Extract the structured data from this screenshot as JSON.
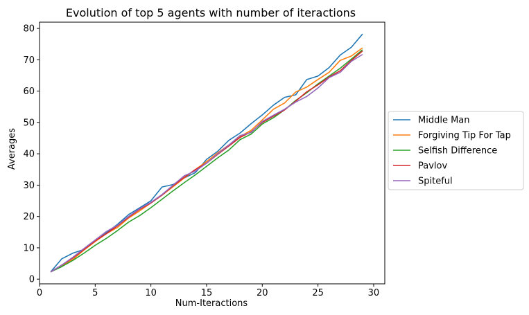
{
  "chart_data": {
    "type": "line",
    "title": "Evolution of top 5 agents with number of iteractions",
    "xlabel": "Num-Iteractions",
    "ylabel": "Averages",
    "xlim": [
      0,
      31
    ],
    "ylim": [
      -1.5,
      82
    ],
    "xticks": [
      0,
      5,
      10,
      15,
      20,
      25,
      30
    ],
    "yticks": [
      0,
      10,
      20,
      30,
      40,
      50,
      60,
      70,
      80
    ],
    "grid": false,
    "legend_position": "center-right, outside plot",
    "x": [
      1,
      2,
      3,
      4,
      5,
      6,
      7,
      8,
      9,
      10,
      11,
      12,
      13,
      14,
      15,
      16,
      17,
      18,
      19,
      20,
      21,
      22,
      23,
      24,
      25,
      26,
      27,
      28,
      29
    ],
    "series": [
      {
        "name": "Middle Man",
        "color": "#1f77b4",
        "values": [
          2.3,
          6.5,
          8.3,
          9.5,
          12.0,
          14.8,
          17.5,
          20.6,
          22.8,
          25.0,
          29.4,
          30.2,
          32.3,
          34.0,
          38.2,
          40.8,
          44.3,
          46.6,
          49.6,
          52.4,
          55.5,
          58.0,
          58.8,
          63.7,
          64.8,
          67.5,
          71.5,
          74.0,
          78.2
        ]
      },
      {
        "name": "Forgiving Tip For Tap",
        "color": "#ff7f0e",
        "values": [
          2.3,
          4.3,
          6.3,
          9.3,
          12.0,
          14.5,
          16.5,
          19.5,
          21.8,
          24.3,
          26.8,
          29.5,
          32.3,
          35.0,
          37.5,
          40.3,
          42.8,
          45.5,
          47.5,
          50.8,
          54.2,
          56.2,
          59.7,
          61.3,
          63.7,
          66.0,
          69.8,
          71.2,
          73.8
        ]
      },
      {
        "name": "Selfish Difference",
        "color": "#2ca02c",
        "values": [
          2.3,
          4.0,
          6.0,
          8.3,
          10.8,
          13.0,
          15.5,
          18.2,
          20.3,
          22.8,
          25.5,
          28.2,
          30.8,
          33.3,
          36.0,
          38.7,
          41.2,
          44.5,
          46.3,
          49.5,
          51.5,
          54.0,
          57.0,
          59.5,
          62.3,
          64.8,
          67.3,
          70.2,
          73.2
        ]
      },
      {
        "name": "Pavlov",
        "color": "#d62728",
        "values": [
          2.3,
          4.5,
          6.8,
          9.5,
          12.2,
          14.5,
          17.0,
          19.8,
          22.3,
          24.3,
          26.8,
          29.8,
          32.5,
          35.0,
          37.0,
          39.8,
          42.5,
          45.2,
          47.0,
          50.0,
          52.0,
          54.0,
          56.8,
          59.8,
          62.0,
          64.5,
          66.5,
          69.8,
          72.8
        ]
      },
      {
        "name": "Spiteful",
        "color": "#9467bd",
        "values": [
          2.3,
          4.5,
          7.0,
          9.8,
          12.5,
          15.2,
          17.2,
          20.0,
          22.5,
          24.5,
          27.0,
          30.0,
          33.0,
          34.5,
          37.0,
          40.0,
          42.8,
          45.8,
          46.8,
          50.3,
          52.3,
          54.2,
          56.5,
          58.3,
          61.0,
          64.3,
          66.0,
          69.5,
          71.7
        ]
      }
    ]
  }
}
